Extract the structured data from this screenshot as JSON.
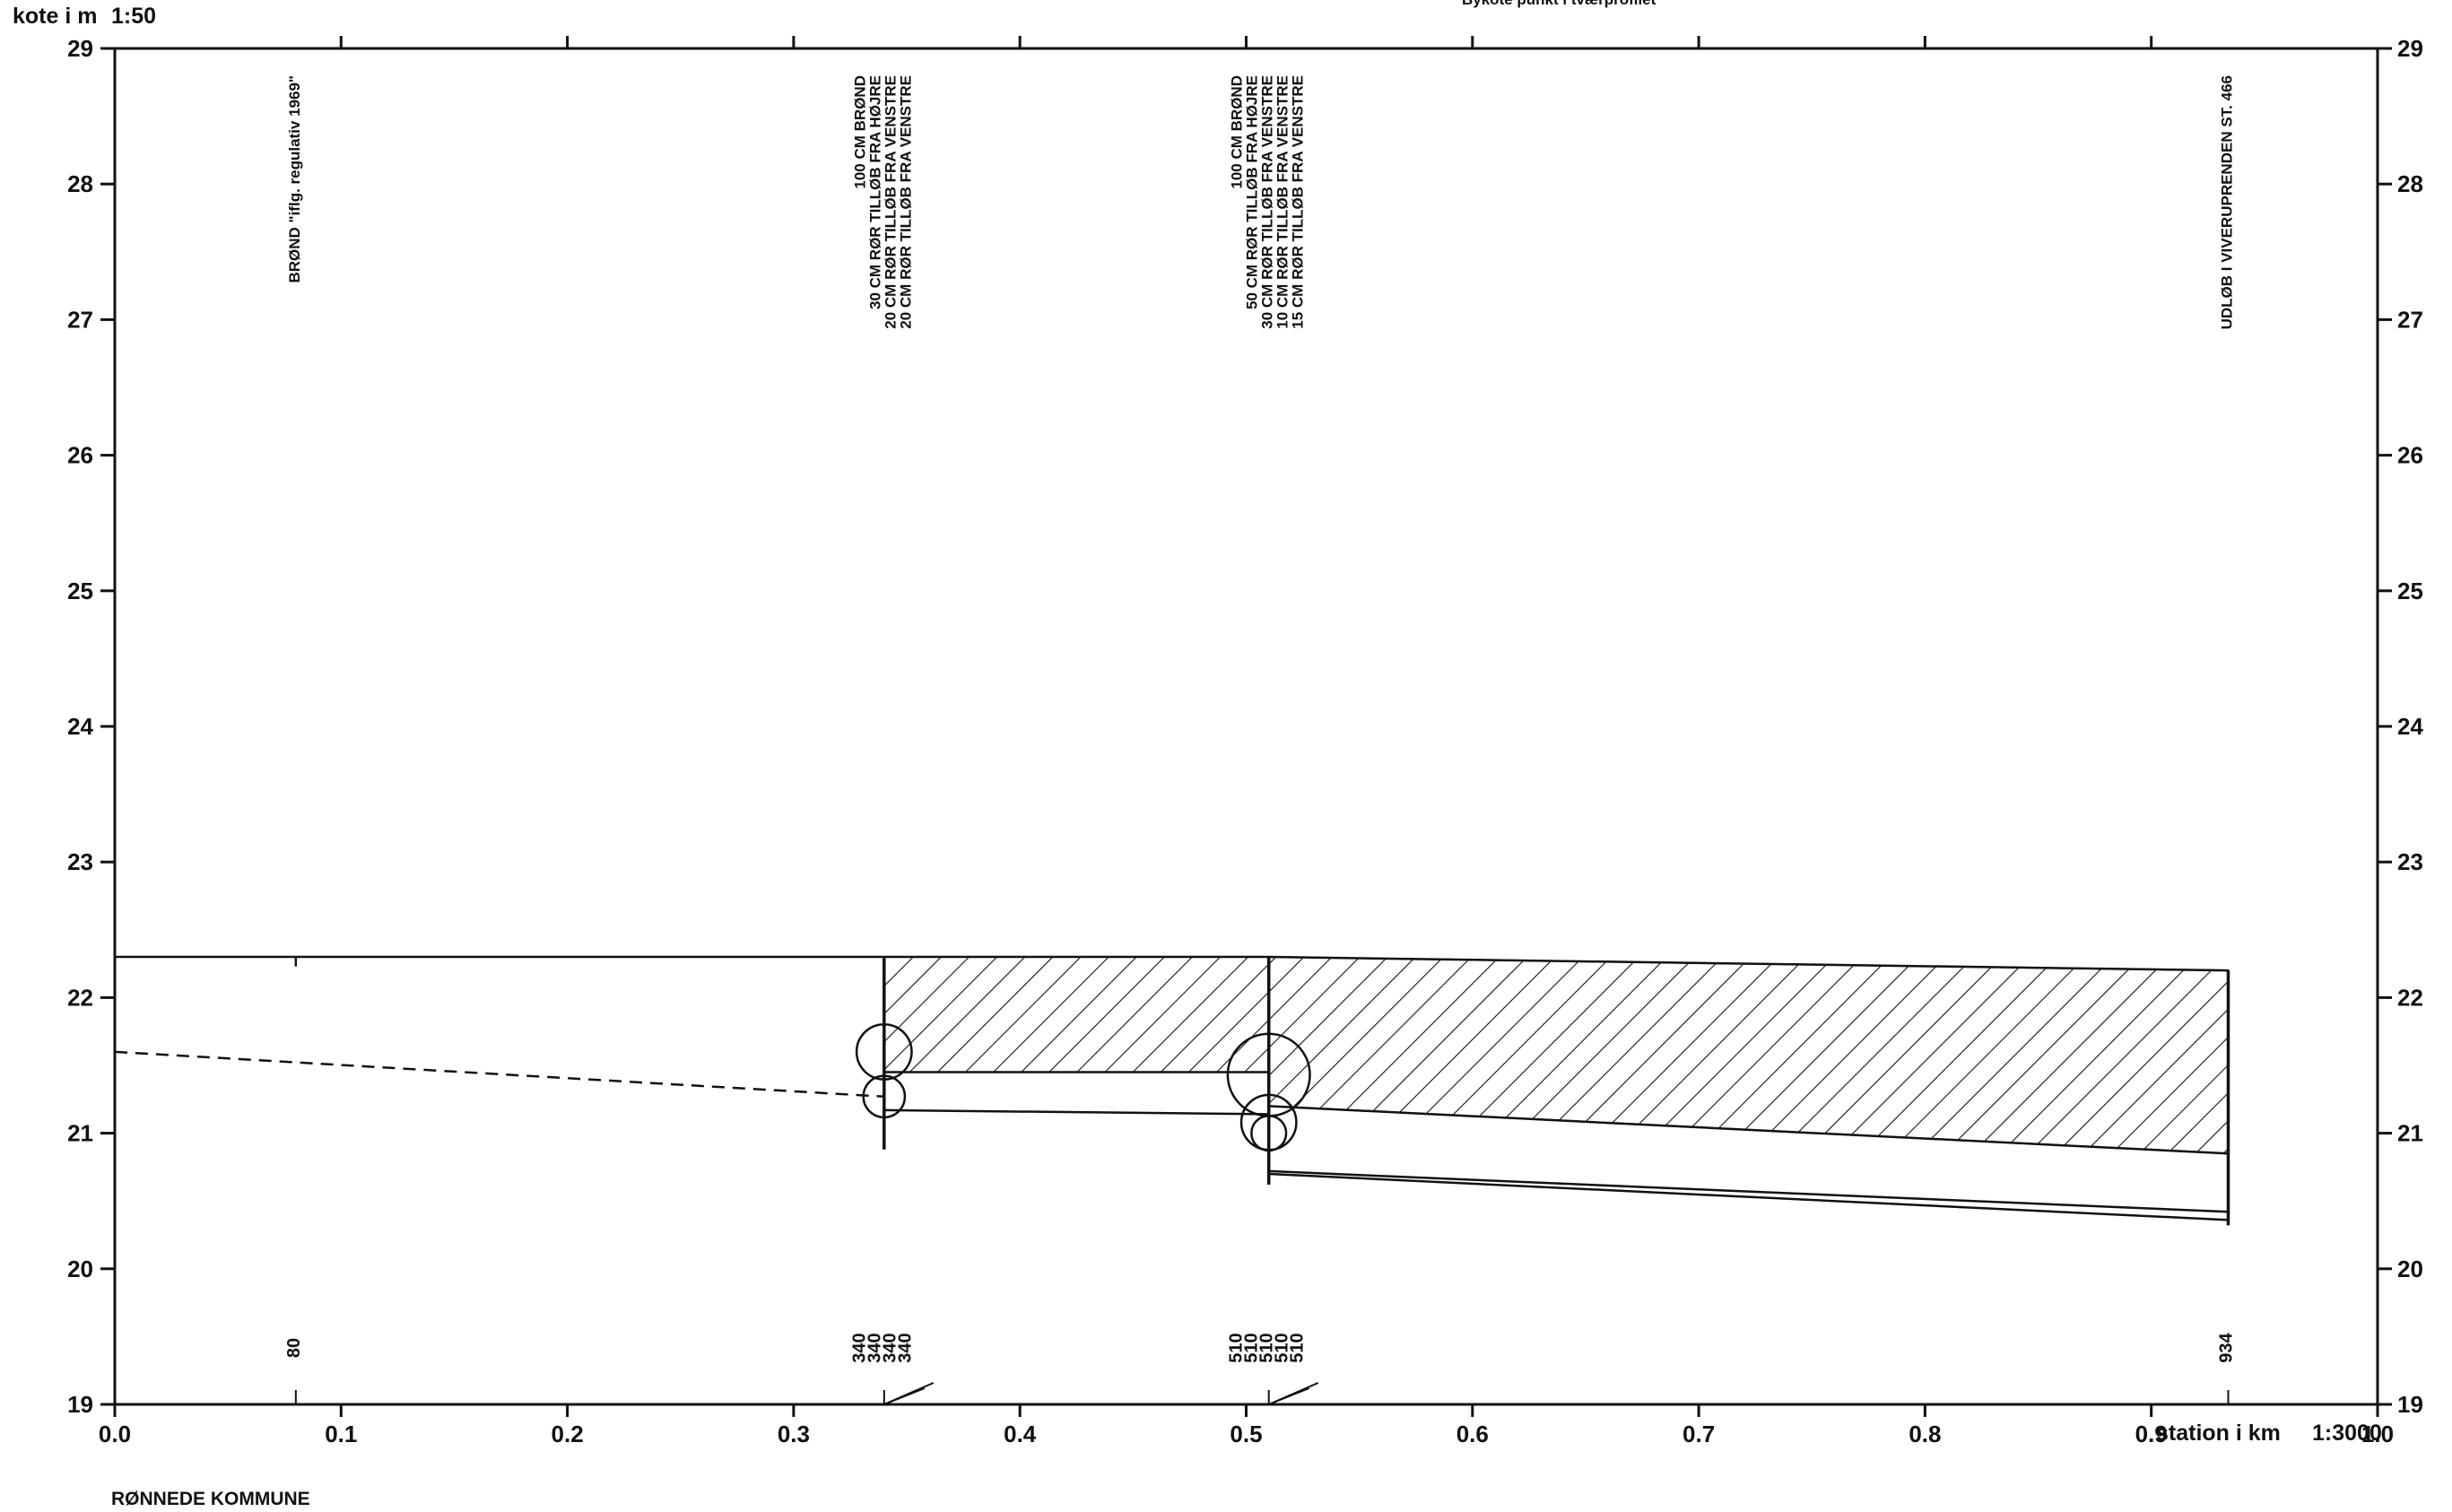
{
  "header": {
    "y_axis_caption": "kote i m",
    "y_scale": "1:50",
    "top_cut_text": "Bykote punkt i tværprofilet"
  },
  "x_axis": {
    "caption": "station i km",
    "scale": "1:3000",
    "range_km": [
      0.0,
      1.0
    ],
    "tick_labels": [
      "0.0",
      "0.1",
      "0.2",
      "0.3",
      "0.4",
      "0.5",
      "0.6",
      "0.7",
      "0.8",
      "0.9",
      "1.0"
    ]
  },
  "y_axis": {
    "range_m": [
      19,
      29
    ],
    "tick_labels": [
      "19",
      "20",
      "21",
      "22",
      "23",
      "24",
      "25",
      "26",
      "27",
      "28",
      "29"
    ]
  },
  "footer": {
    "municipality": "RØNNEDE KOMMUNE"
  },
  "stations": [
    {
      "id": "s80",
      "station_m": 80,
      "labels": [
        "BRØND \"iflg. regulativ 1969\""
      ],
      "station_labels": [
        "80"
      ]
    },
    {
      "id": "s340",
      "station_m": 340,
      "labels": [
        "100 CM BRØND",
        "30 CM RØR TILLØB FRA HØJRE",
        "20 CM RØR TILLØB FRA VENSTRE",
        "20 CM RØR TILLØB FRA VENSTRE"
      ],
      "station_labels": [
        "340",
        "340",
        "340",
        "340"
      ]
    },
    {
      "id": "s510",
      "station_m": 510,
      "labels": [
        "100 CM BRØND",
        "50 CM RØR TILLØB FRA HØJRE",
        "30 CM RØR TILLØB FRA VENSTRE",
        "10 CM RØR TILLØB FRA VENSTRE",
        "15 CM RØR TILLØB FRA VENSTRE"
      ],
      "station_labels": [
        "510",
        "510",
        "510",
        "510",
        "510"
      ]
    },
    {
      "id": "s934",
      "station_m": 934,
      "labels": [
        "UDLØB I VIVERUPRENDEN ST. 466"
      ],
      "station_labels": [
        "934"
      ]
    }
  ],
  "chart_data": {
    "type": "line",
    "xlabel": "station i km",
    "ylabel": "kote i m",
    "xlim": [
      0.0,
      1.0
    ],
    "ylim": [
      19,
      29
    ],
    "series": [
      {
        "points": [
          [
            0.0,
            22.3
          ],
          [
            0.34,
            22.3
          ],
          [
            0.51,
            22.3
          ],
          [
            0.934,
            22.2
          ]
        ]
      },
      {
        "points": [
          [
            0.34,
            21.45
          ],
          [
            0.51,
            21.45
          ]
        ]
      },
      {
        "points": [
          [
            0.51,
            21.2
          ],
          [
            0.934,
            20.85
          ]
        ]
      },
      {
        "points": [
          [
            0.34,
            21.17
          ],
          [
            0.51,
            21.14
          ]
        ]
      },
      {
        "points": [
          [
            0.51,
            20.72
          ],
          [
            0.934,
            20.42
          ]
        ]
      },
      {
        "points": [
          [
            0.51,
            20.7
          ],
          [
            0.934,
            20.36
          ]
        ]
      },
      {
        "points": [
          [
            0.0,
            21.6
          ],
          [
            0.34,
            21.27
          ]
        ]
      }
    ],
    "hatched_areas": [
      {
        "points": [
          [
            0.34,
            22.3
          ],
          [
            0.51,
            22.3
          ],
          [
            0.51,
            21.45
          ],
          [
            0.34,
            21.45
          ]
        ]
      },
      {
        "points": [
          [
            0.51,
            22.3
          ],
          [
            0.934,
            22.2
          ],
          [
            0.934,
            20.85
          ],
          [
            0.51,
            21.2
          ]
        ]
      }
    ],
    "pipe_circles": [
      {
        "x": 0.34,
        "y": 21.6,
        "diameter_m": 0.3
      },
      {
        "x": 0.34,
        "y": 21.27,
        "diameter_m": 0.2
      },
      {
        "x": 0.51,
        "y": 21.43,
        "diameter_m": 0.5
      },
      {
        "x": 0.51,
        "y": 21.08,
        "diameter_m": 0.3
      },
      {
        "x": 0.51,
        "y": 21.0,
        "diameter_m": 0.15
      }
    ],
    "grid": false
  },
  "colors": {
    "ink": "#111111",
    "background": "#ffffff"
  }
}
